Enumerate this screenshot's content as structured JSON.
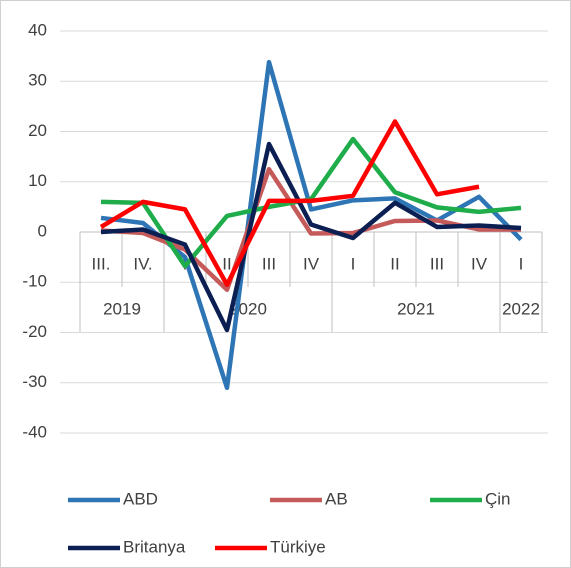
{
  "chart_data": {
    "type": "line",
    "categories": [
      "III.",
      "IV.",
      "I",
      "II",
      "III",
      "IV",
      "I",
      "II",
      "III",
      "IV",
      "I"
    ],
    "category_groups": [
      {
        "label": "2019",
        "span": 2
      },
      {
        "label": "2020",
        "span": 4
      },
      {
        "label": "2021",
        "span": 4
      },
      {
        "label": "2022",
        "span": 1
      }
    ],
    "series": [
      {
        "name": "ABD",
        "color": "#2e75b6",
        "values": [
          2.8,
          1.8,
          -5,
          -31,
          33.8,
          4.5,
          6.3,
          6.7,
          2.3,
          7,
          -1.5
        ]
      },
      {
        "name": "AB",
        "color": "#c55a5a",
        "values": [
          0.3,
          -0.2,
          -3.5,
          -11.5,
          12.5,
          -0.3,
          -0.2,
          2.2,
          2.3,
          0.5,
          0.5
        ]
      },
      {
        "name": "Çin",
        "color": "#1fad4b",
        "values": [
          6,
          5.8,
          -6.8,
          3.2,
          5,
          6.5,
          18.5,
          7.9,
          4.9,
          4,
          4.8
        ]
      },
      {
        "name": "Britanya",
        "color": "#0c1f52",
        "values": [
          0,
          0.5,
          -2.5,
          -19.5,
          17.5,
          1.5,
          -1.2,
          5.8,
          1,
          1.3,
          0.8
        ]
      },
      {
        "name": "Türkiye",
        "color": "#ff0000",
        "values": [
          1,
          6,
          4.5,
          -10.5,
          6.2,
          6.2,
          7.2,
          22,
          7.5,
          9,
          null
        ]
      }
    ],
    "ylim": [
      -40,
      40
    ],
    "yticks": [
      -40,
      -30,
      -20,
      -10,
      0,
      10,
      20,
      30,
      40
    ],
    "grid": true,
    "legend": "bottom"
  }
}
